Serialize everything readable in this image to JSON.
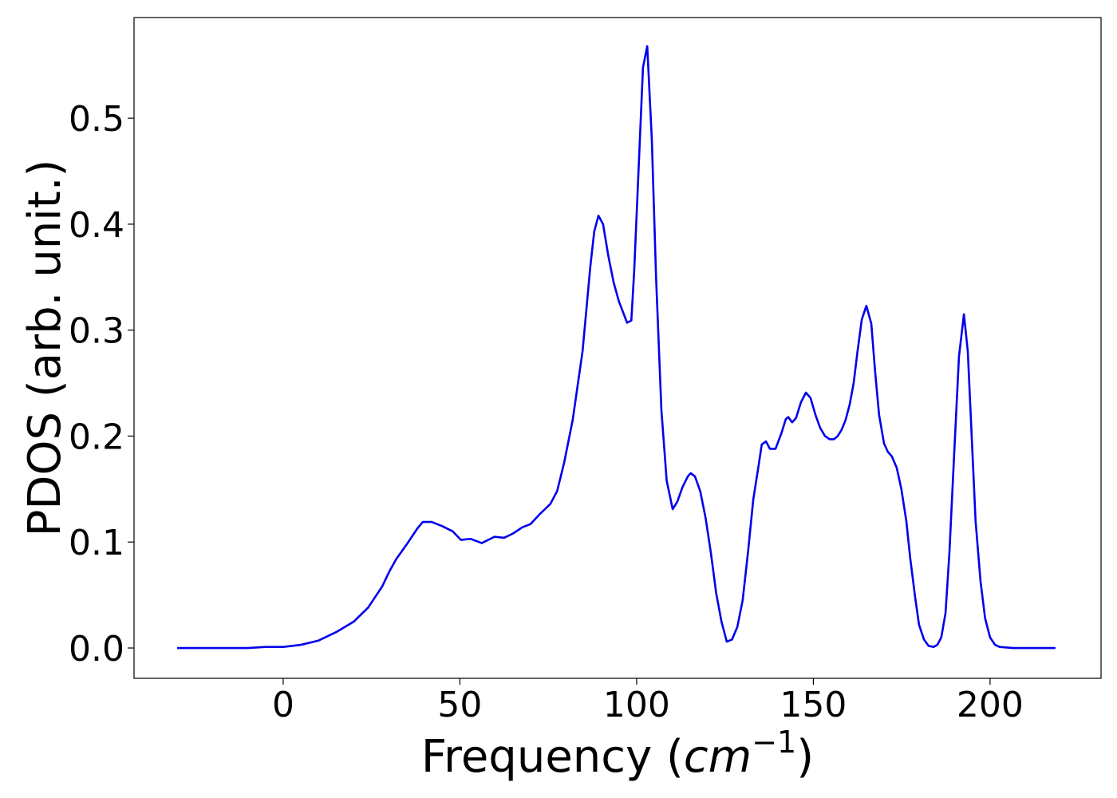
{
  "chart_data": {
    "type": "line",
    "x_label_parts": [
      "Frequency (",
      "cm",
      "−1",
      ")"
    ],
    "y_label": "PDOS (arb. unit.)",
    "xlim": [
      -42.2,
      231.4
    ],
    "ylim": [
      -0.0286,
      0.595
    ],
    "xticks": [
      0,
      50,
      100,
      150,
      200
    ],
    "yticks": [
      {
        "value": 0,
        "label": "0.0"
      },
      0.1,
      0.2,
      0.3,
      0.4,
      0.5
    ],
    "grid": false,
    "x": [
      -30,
      -20,
      -10,
      -5,
      0,
      5,
      10,
      15,
      20,
      24,
      28,
      30,
      32,
      35,
      38,
      39.5,
      42,
      45,
      48,
      50.3,
      53,
      56.2,
      59.8,
      62.5,
      65,
      67.7,
      70,
      72.5,
      75.6,
      77.5,
      79.5,
      81.9,
      84.7,
      86.9,
      88,
      89.2,
      90.5,
      92,
      93.5,
      95,
      97.3,
      98.5,
      99.3,
      101.8,
      103,
      104.3,
      105.5,
      107,
      108.5,
      110.2,
      111.5,
      113,
      114.5,
      115.3,
      116.5,
      118,
      119.5,
      121,
      122.5,
      124,
      125.5,
      127,
      128.5,
      130,
      131.5,
      133,
      134.5,
      135.4,
      136.6,
      137.7,
      139.3,
      141,
      142.2,
      142.9,
      144,
      145.1,
      146.5,
      147.9,
      149.2,
      150.6,
      151.9,
      153.3,
      154.6,
      155.8,
      156.9,
      158,
      159.1,
      160.3,
      161.4,
      162.5,
      163.7,
      165,
      166.4,
      167.5,
      168.6,
      170,
      171.1,
      172.2,
      173.6,
      174.9,
      176.3,
      177.4,
      178.8,
      179.9,
      181.3,
      182.6,
      184,
      185.1,
      186.2,
      187.4,
      188.5,
      189.8,
      191.2,
      192.6,
      193.7,
      194.8,
      195.9,
      197.3,
      198.6,
      200,
      201.4,
      202.7,
      206.5,
      218.5
    ],
    "series": [
      {
        "color": "#0000ee",
        "values": [
          0,
          0,
          0,
          0.001,
          0.001,
          0.003,
          0.007,
          0.015,
          0.025,
          0.038,
          0.058,
          0.072,
          0.084,
          0.098,
          0.113,
          0.119,
          0.119,
          0.115,
          0.11,
          0.102,
          0.103,
          0.099,
          0.105,
          0.104,
          0.108,
          0.114,
          0.117,
          0.126,
          0.136,
          0.148,
          0.175,
          0.215,
          0.28,
          0.36,
          0.393,
          0.408,
          0.4,
          0.37,
          0.345,
          0.327,
          0.307,
          0.309,
          0.355,
          0.548,
          0.568,
          0.48,
          0.35,
          0.225,
          0.158,
          0.131,
          0.138,
          0.152,
          0.162,
          0.165,
          0.162,
          0.148,
          0.123,
          0.09,
          0.052,
          0.025,
          0.006,
          0.008,
          0.02,
          0.045,
          0.09,
          0.14,
          0.172,
          0.192,
          0.195,
          0.188,
          0.188,
          0.203,
          0.216,
          0.218,
          0.213,
          0.217,
          0.232,
          0.241,
          0.236,
          0.22,
          0.208,
          0.2,
          0.197,
          0.197,
          0.2,
          0.206,
          0.215,
          0.23,
          0.25,
          0.28,
          0.31,
          0.323,
          0.306,
          0.26,
          0.22,
          0.193,
          0.185,
          0.181,
          0.17,
          0.15,
          0.12,
          0.085,
          0.048,
          0.022,
          0.008,
          0.002,
          0.001,
          0.003,
          0.01,
          0.033,
          0.09,
          0.18,
          0.275,
          0.315,
          0.28,
          0.2,
          0.12,
          0.063,
          0.028,
          0.01,
          0.003,
          0.001,
          0,
          0
        ]
      }
    ]
  }
}
